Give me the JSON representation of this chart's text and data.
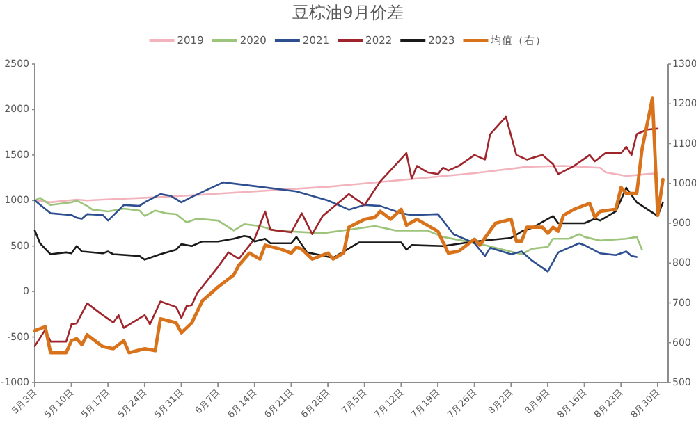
{
  "chart_data": {
    "type": "line",
    "title": "豆棕油9月价差",
    "legend": "top",
    "xlim": [
      "--05-03",
      "--09-01"
    ],
    "xticks": [
      {
        "value": "--05-03",
        "label": "5月3日"
      },
      {
        "value": "--05-10",
        "label": "5月10日"
      },
      {
        "value": "--05-17",
        "label": "5月17日"
      },
      {
        "value": "--05-24",
        "label": "5月24日"
      },
      {
        "value": "--05-31",
        "label": "5月31日"
      },
      {
        "value": "--06-07",
        "label": "6月7日"
      },
      {
        "value": "--06-14",
        "label": "6月14日"
      },
      {
        "value": "--06-21",
        "label": "6月21日"
      },
      {
        "value": "--06-28",
        "label": "6月28日"
      },
      {
        "value": "--07-05",
        "label": "7月5日"
      },
      {
        "value": "--07-12",
        "label": "7月12日"
      },
      {
        "value": "--07-19",
        "label": "7月19日"
      },
      {
        "value": "--07-26",
        "label": "7月26日"
      },
      {
        "value": "--08-02",
        "label": "8月2日"
      },
      {
        "value": "--08-09",
        "label": "8月9日"
      },
      {
        "value": "--08-16",
        "label": "8月16日"
      },
      {
        "value": "--08-23",
        "label": "8月23日"
      },
      {
        "value": "--08-30",
        "label": "8月30日"
      }
    ],
    "ylim": [
      -1000,
      2500
    ],
    "yticks": [
      -1000,
      -500,
      0,
      500,
      1000,
      1500,
      2000,
      2500
    ],
    "y2lim": [
      500,
      1300
    ],
    "y2ticks": [
      500,
      600,
      700,
      800,
      900,
      1000,
      1100,
      1200,
      1300
    ],
    "series": [
      {
        "name": "2019",
        "color": "#f2b3bd",
        "x": [
          "--05-03",
          "--05-06",
          "--05-11",
          "--05-13",
          "--05-16",
          "--05-24",
          "--05-31",
          "--06-28",
          "--07-26",
          "--08-05",
          "--08-12",
          "--08-19",
          "--08-20",
          "--08-24",
          "--08-28",
          "--08-30"
        ],
        "values": [
          1000,
          980,
          1010,
          1000,
          1010,
          1030,
          1050,
          1150,
          1300,
          1370,
          1380,
          1360,
          1310,
          1270,
          1290,
          1300
        ]
      },
      {
        "name": "2020",
        "color": "#9cc47a",
        "x": [
          "--05-03",
          "--05-04",
          "--05-06",
          "--05-10",
          "--05-11",
          "--05-13",
          "--05-14",
          "--05-17",
          "--05-20",
          "--05-23",
          "--05-24",
          "--05-26",
          "--05-28",
          "--05-30",
          "--06-01",
          "--06-03",
          "--06-07",
          "--06-10",
          "--06-12",
          "--06-15",
          "--06-18",
          "--06-27",
          "--07-07",
          "--07-11",
          "--07-17",
          "--07-20",
          "--07-28",
          "--08-04",
          "--08-06",
          "--08-09",
          "--08-10",
          "--08-13",
          "--08-15",
          "--08-16",
          "--08-19",
          "--08-24",
          "--08-26",
          "--08-27"
        ],
        "values": [
          1000,
          1030,
          950,
          980,
          1000,
          940,
          900,
          880,
          910,
          890,
          830,
          890,
          860,
          850,
          760,
          800,
          780,
          670,
          740,
          720,
          670,
          640,
          720,
          670,
          670,
          600,
          510,
          410,
          470,
          490,
          580,
          580,
          630,
          600,
          560,
          580,
          600,
          460
        ]
      },
      {
        "name": "2021",
        "color": "#2e4f8f",
        "x": [
          "--05-03",
          "--05-06",
          "--05-10",
          "--05-11",
          "--05-12",
          "--05-13",
          "--05-16",
          "--05-17",
          "--05-20",
          "--05-23",
          "--05-24",
          "--05-27",
          "--05-29",
          "--05-31",
          "--06-02",
          "--06-08",
          "--06-15",
          "--06-22",
          "--06-28",
          "--07-02",
          "--07-05",
          "--07-08",
          "--07-12",
          "--07-14",
          "--07-19",
          "--07-22",
          "--07-26",
          "--07-28",
          "--07-29",
          "--08-02",
          "--08-04",
          "--08-06",
          "--08-09",
          "--08-11",
          "--08-15",
          "--08-16",
          "--08-19",
          "--08-22",
          "--08-24",
          "--08-25",
          "--08-26"
        ],
        "values": [
          1000,
          860,
          840,
          810,
          800,
          850,
          840,
          780,
          950,
          940,
          980,
          1070,
          1050,
          980,
          1040,
          1200,
          1150,
          1100,
          1000,
          900,
          950,
          940,
          860,
          840,
          850,
          630,
          530,
          390,
          480,
          410,
          440,
          340,
          220,
          430,
          530,
          510,
          420,
          400,
          440,
          390,
          380
        ]
      },
      {
        "name": "2022",
        "color": "#a0242c",
        "x": [
          "--05-03",
          "--05-05",
          "--05-06",
          "--05-09",
          "--05-10",
          "--05-11",
          "--05-13",
          "--05-16",
          "--05-18",
          "--05-19",
          "--05-20",
          "--05-24",
          "--05-25",
          "--05-27",
          "--05-30",
          "--05-31",
          "--06-01",
          "--06-02",
          "--06-03",
          "--06-07",
          "--06-09",
          "--06-11",
          "--06-14",
          "--06-16",
          "--06-17",
          "--06-21",
          "--06-23",
          "--06-25",
          "--06-27",
          "--07-02",
          "--07-05",
          "--07-08",
          "--07-13",
          "--07-14",
          "--07-15",
          "--07-17",
          "--07-19",
          "--07-20",
          "--07-21",
          "--07-23",
          "--07-26",
          "--07-28",
          "--07-29",
          "--08-01",
          "--08-03",
          "--08-05",
          "--08-08",
          "--08-10",
          "--08-11",
          "--08-14",
          "--08-17",
          "--08-18",
          "--08-20",
          "--08-23",
          "--08-24",
          "--08-25",
          "--08-26",
          "--08-28",
          "--08-30"
        ],
        "values": [
          -600,
          -420,
          -550,
          -550,
          -360,
          -350,
          -130,
          -260,
          -340,
          -260,
          -400,
          -260,
          -360,
          -110,
          -170,
          -290,
          -160,
          -150,
          -20,
          270,
          430,
          360,
          580,
          880,
          680,
          650,
          860,
          630,
          830,
          1070,
          950,
          1210,
          1520,
          1240,
          1380,
          1310,
          1290,
          1360,
          1330,
          1380,
          1500,
          1450,
          1730,
          1920,
          1500,
          1450,
          1500,
          1400,
          1290,
          1380,
          1500,
          1430,
          1520,
          1520,
          1590,
          1500,
          1730,
          1780,
          1790
        ]
      },
      {
        "name": "2023",
        "color": "#1a1a1a",
        "x": [
          "--05-03",
          "--05-04",
          "--05-06",
          "--05-09",
          "--05-10",
          "--05-11",
          "--05-12",
          "--05-16",
          "--05-17",
          "--05-18",
          "--05-23",
          "--05-24",
          "--05-27",
          "--05-30",
          "--05-31",
          "--06-02",
          "--06-04",
          "--06-07",
          "--06-10",
          "--06-12",
          "--06-13",
          "--06-14",
          "--06-16",
          "--06-17",
          "--06-21",
          "--06-22",
          "--06-24",
          "--06-29",
          "--07-01",
          "--07-04",
          "--07-12",
          "--07-13",
          "--07-14",
          "--07-20",
          "--07-26",
          "--08-02",
          "--08-04",
          "--08-06",
          "--08-10",
          "--08-11",
          "--08-16",
          "--08-18",
          "--08-19",
          "--08-22",
          "--08-24",
          "--08-26",
          "--08-30",
          "--08-31"
        ],
        "values": [
          670,
          530,
          410,
          430,
          420,
          500,
          440,
          420,
          440,
          410,
          390,
          350,
          410,
          460,
          520,
          500,
          550,
          550,
          580,
          610,
          600,
          550,
          580,
          530,
          530,
          600,
          430,
          370,
          440,
          540,
          540,
          460,
          510,
          500,
          550,
          590,
          660,
          700,
          830,
          750,
          750,
          800,
          780,
          880,
          1140,
          980,
          830,
          980
        ]
      },
      {
        "name": "均值（右）",
        "color": "#d8731c",
        "axis": "y2",
        "x": [
          "--05-03",
          "--05-05",
          "--05-06",
          "--05-09",
          "--05-10",
          "--05-11",
          "--05-12",
          "--05-13",
          "--05-16",
          "--05-18",
          "--05-20",
          "--05-21",
          "--05-24",
          "--05-26",
          "--05-27",
          "--05-30",
          "--05-31",
          "--06-02",
          "--06-04",
          "--06-07",
          "--06-10",
          "--06-11",
          "--06-13",
          "--06-15",
          "--06-16",
          "--06-19",
          "--06-21",
          "--06-22",
          "--06-23",
          "--06-25",
          "--06-28",
          "--06-29",
          "--07-01",
          "--07-02",
          "--07-05",
          "--07-07",
          "--07-08",
          "--07-10",
          "--07-12",
          "--07-13",
          "--07-15",
          "--07-19",
          "--07-21",
          "--07-23",
          "--07-26",
          "--07-27",
          "--07-30",
          "--08-02",
          "--08-03",
          "--08-04",
          "--08-05",
          "--08-08",
          "--08-09",
          "--08-10",
          "--08-11",
          "--08-12",
          "--08-14",
          "--08-17",
          "--08-18",
          "--08-19",
          "--08-22",
          "--08-23",
          "--08-24",
          "--08-26",
          "--08-27",
          "--08-29",
          "--08-30",
          "--08-31"
        ],
        "values": [
          630,
          640,
          575,
          575,
          605,
          610,
          595,
          620,
          590,
          585,
          605,
          575,
          585,
          580,
          660,
          650,
          625,
          650,
          705,
          740,
          770,
          795,
          825,
          810,
          845,
          835,
          825,
          840,
          835,
          810,
          825,
          810,
          825,
          890,
          910,
          915,
          930,
          910,
          935,
          895,
          910,
          880,
          825,
          830,
          860,
          845,
          900,
          910,
          855,
          855,
          890,
          890,
          875,
          890,
          880,
          920,
          935,
          950,
          915,
          930,
          935,
          990,
          975,
          975,
          1085,
          1215,
          920,
          1010
        ]
      }
    ]
  }
}
